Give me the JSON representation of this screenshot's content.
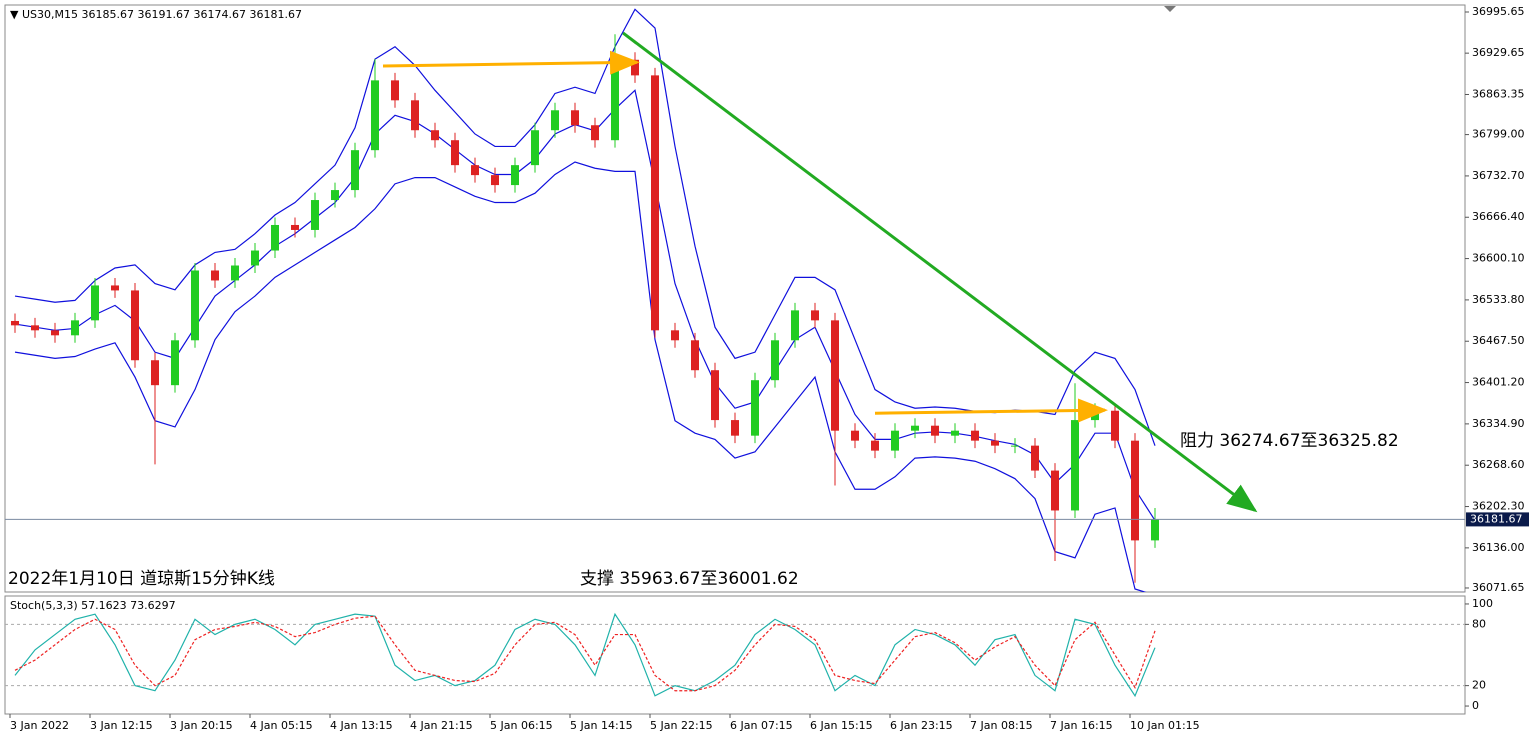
{
  "chart_data": {
    "type": "candlestick",
    "symbol": "US30,M15",
    "last_bar": {
      "open": 36185.67,
      "high": 36191.67,
      "low": 36174.67,
      "close": 36181.67
    },
    "up_color": "#22cc22",
    "down_color": "#dd2222",
    "band_color": "#1010dd",
    "open": [
      36500,
      36493,
      36485,
      36477,
      36501,
      36557,
      36549,
      36437,
      36397,
      36469,
      36581,
      36565,
      36589,
      36613,
      36654,
      36646,
      36694,
      36710,
      36774,
      36886,
      36854,
      36806,
      36790,
      36750,
      36734,
      36718,
      36750,
      36806,
      36838,
      36814,
      36790,
      36919,
      36894,
      36485,
      36469,
      36421,
      36341,
      36316,
      36405,
      36469,
      36517,
      36501,
      36324,
      36308,
      36292,
      36324,
      36332,
      36316,
      36324,
      36308,
      36300,
      36300,
      36260,
      36196,
      36341,
      36356,
      36308,
      36148
    ],
    "high": [
      36512,
      36505,
      36497,
      36513,
      36569,
      36569,
      36561,
      36449,
      36481,
      36593,
      36593,
      36601,
      36625,
      36666,
      36666,
      36706,
      36722,
      36786,
      36920,
      36898,
      36866,
      36818,
      36802,
      36762,
      36746,
      36762,
      36818,
      36850,
      36850,
      36826,
      36960,
      36931,
      36906,
      36497,
      36481,
      36433,
      36353,
      36417,
      36481,
      36529,
      36529,
      36513,
      36336,
      36320,
      36336,
      36344,
      36344,
      36336,
      36336,
      36320,
      36312,
      36312,
      36272,
      36400,
      36368,
      36368,
      36320,
      36200
    ],
    "low": [
      36481,
      36473,
      36465,
      36465,
      36489,
      36537,
      36425,
      36270,
      36385,
      36457,
      36553,
      36553,
      36577,
      36601,
      36634,
      36634,
      36682,
      36698,
      36762,
      36842,
      36794,
      36778,
      36738,
      36722,
      36706,
      36706,
      36738,
      36794,
      36802,
      36778,
      36778,
      36882,
      36473,
      36457,
      36409,
      36329,
      36304,
      36304,
      36393,
      36457,
      36489,
      36236,
      36296,
      36280,
      36280,
      36312,
      36304,
      36304,
      36296,
      36288,
      36288,
      36248,
      36115,
      36184,
      36329,
      36296,
      36080,
      36136
    ],
    "close": [
      36493,
      36485,
      36477,
      36501,
      36557,
      36549,
      36437,
      36397,
      36469,
      36581,
      36565,
      36589,
      36613,
      36654,
      36646,
      36694,
      36710,
      36774,
      36886,
      36854,
      36806,
      36790,
      36750,
      36734,
      36718,
      36750,
      36806,
      36838,
      36814,
      36790,
      36919,
      36894,
      36485,
      36469,
      36421,
      36341,
      36316,
      36405,
      36469,
      36517,
      36501,
      36324,
      36308,
      36292,
      36324,
      36332,
      36316,
      36324,
      36308,
      36300,
      36300,
      36260,
      36196,
      36341,
      36356,
      36308,
      36148,
      36181.67
    ],
    "bands": {
      "upper": [
        36540,
        36535,
        36530,
        36533,
        36565,
        36585,
        36590,
        36560,
        36550,
        36590,
        36610,
        36615,
        36640,
        36670,
        36690,
        36720,
        36750,
        36810,
        36920,
        36940,
        36910,
        36870,
        36835,
        36800,
        36780,
        36780,
        36815,
        36865,
        36875,
        36865,
        36940,
        37000,
        36970,
        36780,
        36620,
        36490,
        36440,
        36450,
        36510,
        36570,
        36570,
        36550,
        36470,
        36390,
        36370,
        36360,
        36362,
        36360,
        36355,
        36353,
        36357,
        36355,
        36350,
        36420,
        36450,
        36440,
        36390,
        36300
      ],
      "middle": [
        36495,
        36490,
        36485,
        36488,
        36510,
        36525,
        36500,
        36450,
        36440,
        36490,
        36540,
        36565,
        36590,
        36620,
        36640,
        36665,
        36690,
        36730,
        36800,
        36830,
        36820,
        36800,
        36775,
        36750,
        36735,
        36735,
        36760,
        36800,
        36815,
        36805,
        36840,
        36870,
        36720,
        36560,
        36470,
        36400,
        36360,
        36370,
        36420,
        36470,
        36490,
        36420,
        36350,
        36310,
        36310,
        36320,
        36322,
        36320,
        36315,
        36308,
        36302,
        36285,
        36240,
        36270,
        36320,
        36320,
        36230,
        36180
      ],
      "lower": [
        36450,
        36445,
        36440,
        36443,
        36455,
        36465,
        36410,
        36340,
        36330,
        36390,
        36470,
        36515,
        36540,
        36570,
        36590,
        36610,
        36630,
        36650,
        36680,
        36720,
        36730,
        36730,
        36715,
        36700,
        36690,
        36690,
        36705,
        36735,
        36755,
        36745,
        36740,
        36740,
        36470,
        36340,
        36320,
        36310,
        36280,
        36290,
        36330,
        36370,
        36410,
        36290,
        36230,
        36230,
        36250,
        36280,
        36282,
        36280,
        36275,
        36263,
        36247,
        36215,
        36130,
        36120,
        36190,
        36200,
        36070,
        36060
      ]
    },
    "ylim": [
      36065.2,
      37006.9
    ],
    "yticks": [
      36995.65,
      36929.65,
      {
        "value": 36863.35,
        "label": "36863.35"
      },
      {
        "value": 36799.0,
        "label": "36799.00"
      },
      {
        "value": 36732.7,
        "label": "36732.70"
      },
      {
        "value": 36666.4,
        "label": "36666.40"
      },
      {
        "value": 36600.1,
        "label": "36600.10"
      },
      {
        "value": 36533.8,
        "label": "36533.80"
      },
      {
        "value": 36467.5,
        "label": "36467.50"
      },
      {
        "value": 36401.2,
        "label": "36401.20"
      },
      {
        "value": 36334.9,
        "label": "36334.90"
      },
      {
        "value": 36268.6,
        "label": "36268.60"
      },
      {
        "value": 36202.3,
        "label": "36202.30"
      },
      {
        "value": 36136.0,
        "label": "36136.00"
      },
      36071.65
    ],
    "xlim": [
      -0.5,
      72.5
    ],
    "xticks": [
      {
        "value": -0.25,
        "label": "3 Jan 2022"
      },
      {
        "value": 3.75,
        "label": "3 Jan 12:15"
      },
      {
        "value": 7.75,
        "label": "3 Jan 20:15"
      },
      {
        "value": 11.75,
        "label": "4 Jan 05:15"
      },
      {
        "value": 15.75,
        "label": "4 Jan 13:15"
      },
      {
        "value": 19.75,
        "label": "4 Jan 21:15"
      },
      {
        "value": 23.75,
        "label": "5 Jan 06:15"
      },
      {
        "value": 27.75,
        "label": "5 Jan 14:15"
      },
      {
        "value": 31.75,
        "label": "5 Jan 22:15"
      },
      {
        "value": 35.75,
        "label": "6 Jan 07:15"
      },
      {
        "value": 39.75,
        "label": "6 Jan 15:15"
      },
      {
        "value": 43.75,
        "label": "6 Jan 23:15"
      },
      {
        "value": 47.75,
        "label": "7 Jan 08:15"
      },
      {
        "value": 51.75,
        "label": "7 Jan 16:15"
      },
      {
        "value": 55.75,
        "label": "10 Jan 01:15"
      }
    ],
    "lines": [
      {
        "color": "#22aa22",
        "x": [
          30.4,
          62
        ],
        "y": [
          36962,
          36196
        ]
      },
      {
        "color": "#ffb000",
        "x": [
          18.4,
          31.1
        ],
        "y": [
          36909,
          36915
        ]
      },
      {
        "color": "#ffb000",
        "x": [
          43,
          54.5
        ],
        "y": [
          36352,
          36357
        ]
      }
    ],
    "annotations": [
      "2022年1月10日 道琼斯15分钟K线",
      "支撑 35963.67至36001.62",
      "阻力 36274.67至36325.82"
    ],
    "stoch": {
      "label": "Stoch(5,3,3)",
      "ylim": [
        -7.8,
        107.8
      ],
      "yticks": [
        100,
        80,
        20,
        0
      ],
      "series": [
        {
          "color": "#20b2aa",
          "values": [
            30,
            55,
            70,
            85,
            90,
            60,
            20,
            15,
            45,
            85,
            70,
            80,
            85,
            75,
            60,
            80,
            85,
            90,
            88,
            40,
            25,
            30,
            20,
            25,
            40,
            75,
            85,
            80,
            60,
            30,
            90,
            60,
            10,
            20,
            15,
            25,
            40,
            70,
            85,
            75,
            60,
            15,
            30,
            20,
            60,
            75,
            70,
            60,
            40,
            65,
            70,
            30,
            15,
            85,
            80,
            40,
            10,
            57.1623
          ]
        },
        {
          "color": "#ee2222",
          "values": [
            35,
            45,
            60,
            75,
            85,
            75,
            40,
            20,
            30,
            65,
            75,
            78,
            82,
            78,
            68,
            72,
            80,
            86,
            88,
            60,
            35,
            30,
            25,
            24,
            32,
            60,
            80,
            82,
            70,
            40,
            70,
            70,
            30,
            15,
            15,
            20,
            35,
            60,
            80,
            78,
            65,
            30,
            25,
            22,
            45,
            68,
            72,
            62,
            45,
            58,
            68,
            40,
            20,
            65,
            82,
            50,
            18,
            73.6297
          ]
        }
      ]
    }
  }
}
